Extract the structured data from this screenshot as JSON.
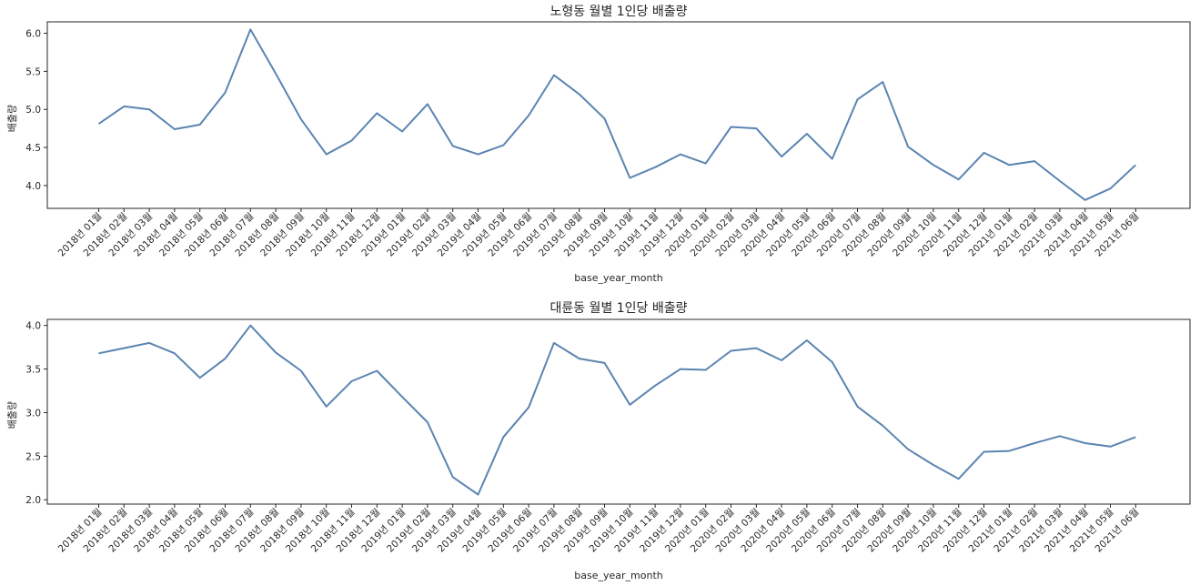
{
  "chart_data": [
    {
      "type": "line",
      "title": "노형동 월별 1인당 배출량",
      "xlabel": "base_year_month",
      "ylabel": "배출량",
      "ylim": [
        3.7,
        6.15
      ],
      "yticks": [
        "4.0",
        "4.5",
        "5.0",
        "5.5",
        "6.0"
      ],
      "grid": false,
      "line_color": "#5b84b1",
      "categories": [
        "2018년 01월",
        "2018년 02월",
        "2018년 03월",
        "2018년 04월",
        "2018년 05월",
        "2018년 06월",
        "2018년 07월",
        "2018년 08월",
        "2018년 09월",
        "2018년 10월",
        "2018년 11월",
        "2018년 12월",
        "2019년 01월",
        "2019년 02월",
        "2019년 03월",
        "2019년 04월",
        "2019년 05월",
        "2019년 06월",
        "2019년 07월",
        "2019년 08월",
        "2019년 09월",
        "2019년 10월",
        "2019년 11월",
        "2019년 12월",
        "2020년 01월",
        "2020년 02월",
        "2020년 03월",
        "2020년 04월",
        "2020년 05월",
        "2020년 06월",
        "2020년 07월",
        "2020년 08월",
        "2020년 09월",
        "2020년 10월",
        "2020년 11월",
        "2020년 12월",
        "2021년 01월",
        "2021년 02월",
        "2021년 03월",
        "2021년 04월",
        "2021년 05월",
        "2021년 06월"
      ],
      "values": [
        4.81,
        5.04,
        5.0,
        4.74,
        4.8,
        5.22,
        6.05,
        5.47,
        4.87,
        4.41,
        4.59,
        4.95,
        4.71,
        5.07,
        4.52,
        4.41,
        4.53,
        4.92,
        5.45,
        5.2,
        4.88,
        4.1,
        4.24,
        4.41,
        4.29,
        4.77,
        4.75,
        4.38,
        4.68,
        4.35,
        5.13,
        5.36,
        4.51,
        4.27,
        4.08,
        4.43,
        4.27,
        4.32,
        4.06,
        3.81,
        3.96,
        4.27
      ]
    },
    {
      "type": "line",
      "title": "대륜동 월별 1인당 배출량",
      "xlabel": "base_year_month",
      "ylabel": "배출량",
      "ylim": [
        1.95,
        4.07
      ],
      "yticks": [
        "2.0",
        "2.5",
        "3.0",
        "3.5",
        "4.0"
      ],
      "grid": false,
      "line_color": "#5b84b1",
      "categories": [
        "2018년 01월",
        "2018년 02월",
        "2018년 03월",
        "2018년 04월",
        "2018년 05월",
        "2018년 06월",
        "2018년 07월",
        "2018년 08월",
        "2018년 09월",
        "2018년 10월",
        "2018년 11월",
        "2018년 12월",
        "2019년 01월",
        "2019년 02월",
        "2019년 03월",
        "2019년 04월",
        "2019년 05월",
        "2019년 06월",
        "2019년 07월",
        "2019년 08월",
        "2019년 09월",
        "2019년 10월",
        "2019년 11월",
        "2019년 12월",
        "2020년 01월",
        "2020년 02월",
        "2020년 03월",
        "2020년 04월",
        "2020년 05월",
        "2020년 06월",
        "2020년 07월",
        "2020년 08월",
        "2020년 09월",
        "2020년 10월",
        "2020년 11월",
        "2020년 12월",
        "2021년 01월",
        "2021년 02월",
        "2021년 03월",
        "2021년 04월",
        "2021년 05월",
        "2021년 06월"
      ],
      "values": [
        3.68,
        3.74,
        3.8,
        3.68,
        3.4,
        3.62,
        4.0,
        3.69,
        3.48,
        3.07,
        3.36,
        3.48,
        3.18,
        2.89,
        2.26,
        2.06,
        2.72,
        3.06,
        3.8,
        3.62,
        3.57,
        3.09,
        3.31,
        3.5,
        3.49,
        3.71,
        3.74,
        3.6,
        3.83,
        3.58,
        3.07,
        2.85,
        2.58,
        2.4,
        2.24,
        2.55,
        2.56,
        2.65,
        2.73,
        2.65,
        2.61,
        2.72
      ]
    }
  ]
}
